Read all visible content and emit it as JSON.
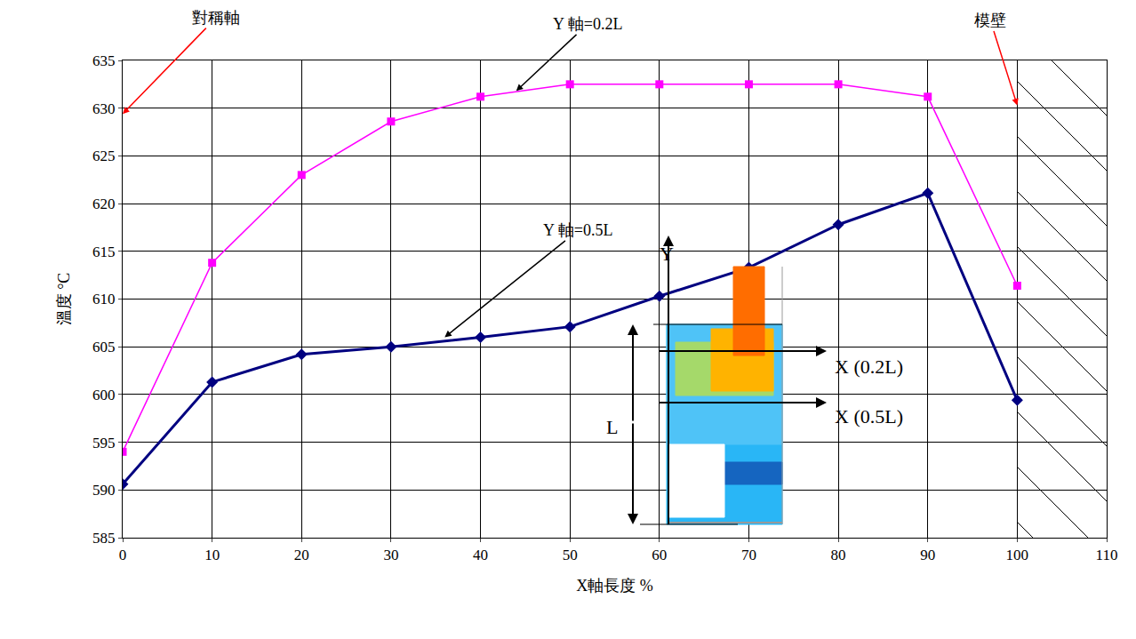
{
  "chart_data": {
    "type": "line",
    "x_label": "X軸長度 %",
    "y_label": "溫度 °C",
    "x": [
      0,
      10,
      20,
      30,
      40,
      50,
      60,
      70,
      80,
      90,
      100
    ],
    "series": [
      {
        "name": "Y 軸=0.2L",
        "color": "#ff00ff",
        "marker": "square",
        "line_style": "solid",
        "values": [
          594,
          613.8,
          623,
          628.6,
          631.2,
          632.5,
          632.5,
          632.5,
          632.5,
          631.2,
          611.4
        ]
      },
      {
        "name": "Y 軸=0.5L",
        "color": "#000080",
        "marker": "diamond",
        "line_style": "solid",
        "values": [
          590.6,
          601.3,
          604.2,
          605,
          606,
          607.1,
          610.3,
          613.3,
          617.8,
          621.1,
          599.4
        ]
      }
    ],
    "xlim": [
      0,
      110
    ],
    "xticks": [
      0,
      10,
      20,
      30,
      40,
      50,
      60,
      70,
      80,
      90,
      100,
      110
    ],
    "ylim": [
      585,
      635
    ],
    "yticks": [
      585,
      590,
      595,
      600,
      605,
      610,
      615,
      620,
      625,
      630,
      635
    ],
    "grid": true,
    "annotations": [
      {
        "text": "對稱軸",
        "x": 0,
        "y": 629.4,
        "color": "#ff0000"
      },
      {
        "text": "模壁",
        "x": 100,
        "y": 630.3,
        "color": "#ff0000"
      },
      {
        "text": "Y 軸=0.2L",
        "x": 44,
        "y": 631.8,
        "color": "#000000"
      },
      {
        "text": "Y 軸=0.5L",
        "x": 36,
        "y": 606,
        "color": "#000000"
      }
    ],
    "inset": {
      "y_label": "Y",
      "x_labels": [
        "X (0.2L)",
        "X (0.5L)"
      ],
      "length_label": "L"
    }
  }
}
